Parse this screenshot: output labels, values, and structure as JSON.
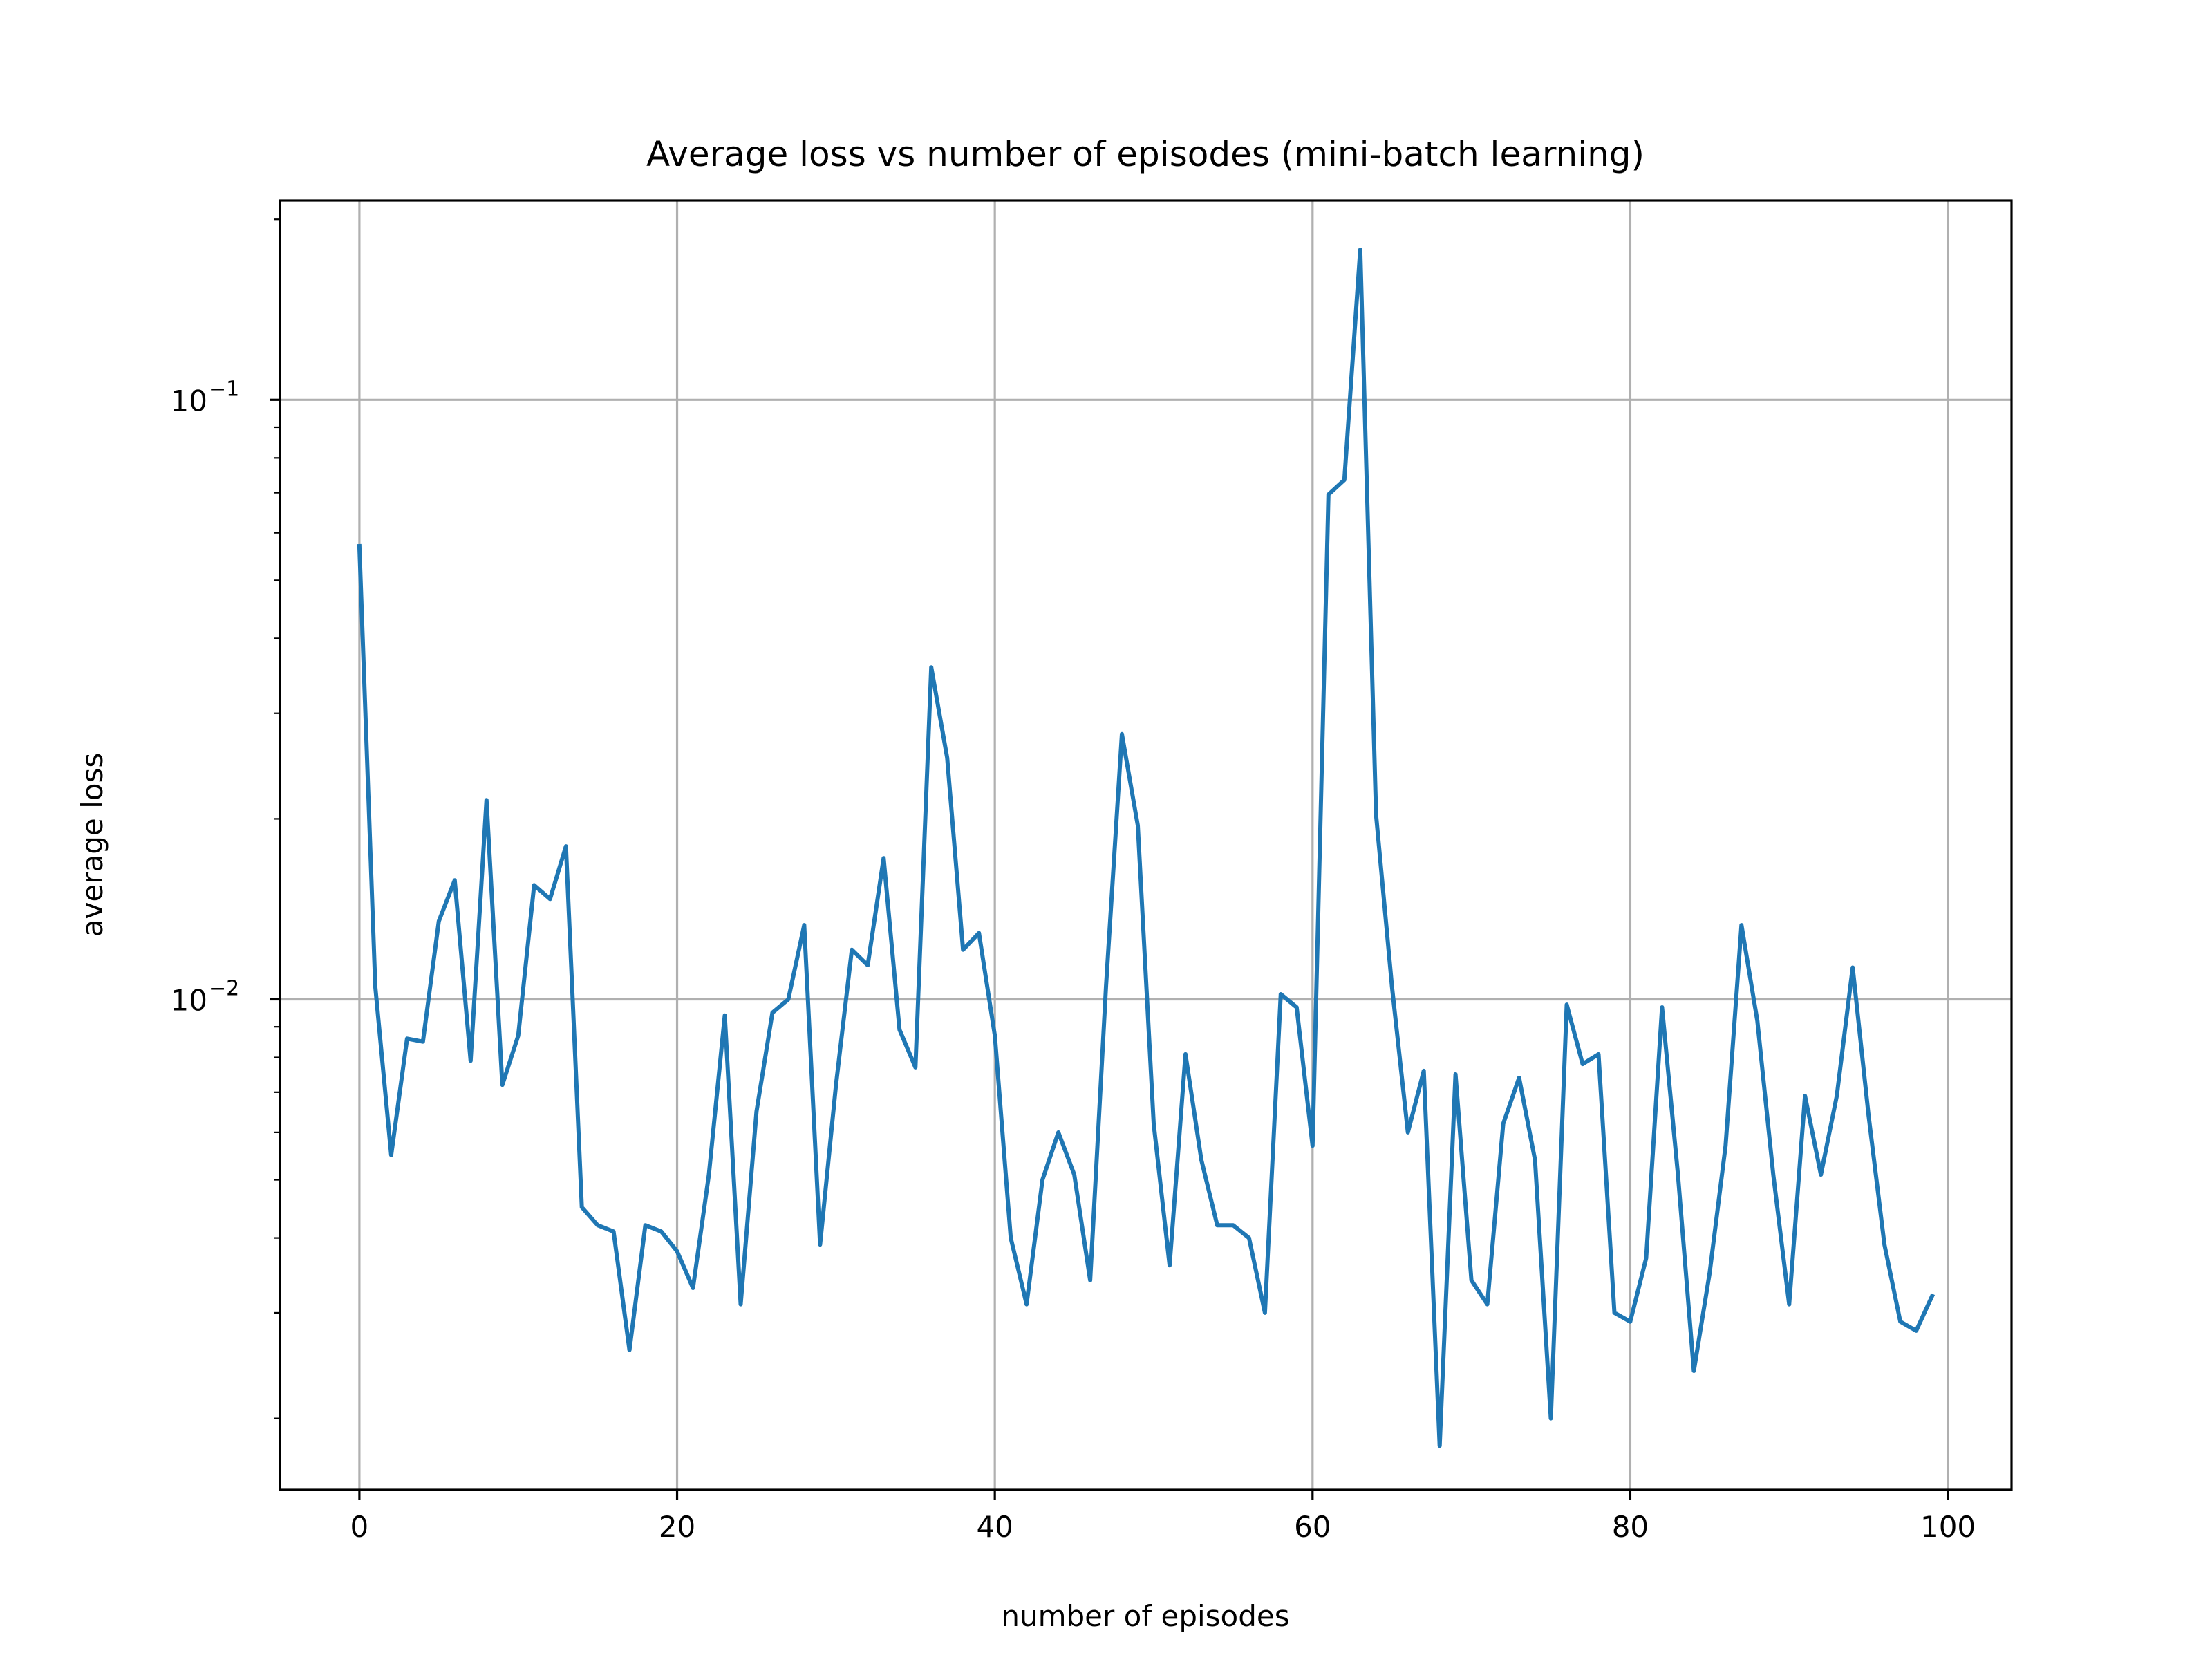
{
  "chart_data": {
    "type": "line",
    "title": "Average loss vs number of episodes (mini-batch learning)",
    "xlabel": "number of episodes",
    "ylabel": "average loss",
    "xlim": [
      -5,
      104
    ],
    "ylim": [
      0.00152,
      0.215
    ],
    "yscale": "log",
    "grid": true,
    "x_ticks": [
      {
        "value": 0,
        "label": "0"
      },
      {
        "value": 20,
        "label": "20"
      },
      {
        "value": 40,
        "label": "40"
      },
      {
        "value": 60,
        "label": "60"
      },
      {
        "value": 80,
        "label": "80"
      },
      {
        "value": 100,
        "label": "100"
      }
    ],
    "y_ticks": [
      {
        "value": 0.01,
        "base": "10",
        "exp": "−2"
      },
      {
        "value": 0.1,
        "base": "10",
        "exp": "−1"
      }
    ],
    "y_minor_ticks": [
      0.002,
      0.003,
      0.004,
      0.005,
      0.006,
      0.007,
      0.008,
      0.009,
      0.02,
      0.03,
      0.04,
      0.05,
      0.06,
      0.07,
      0.08,
      0.09,
      0.2
    ],
    "series": [
      {
        "color": "#1f77b4",
        "x": [
          0,
          1,
          2,
          3,
          4,
          5,
          6,
          7,
          8,
          9,
          10,
          11,
          12,
          13,
          14,
          15,
          16,
          17,
          18,
          19,
          20,
          21,
          22,
          23,
          24,
          25,
          26,
          27,
          28,
          29,
          30,
          31,
          32,
          33,
          34,
          35,
          36,
          37,
          38,
          39,
          40,
          41,
          42,
          43,
          44,
          45,
          46,
          47,
          48,
          49,
          50,
          51,
          52,
          53,
          54,
          55,
          56,
          57,
          58,
          59,
          60,
          61,
          62,
          63,
          64,
          65,
          66,
          67,
          68,
          69,
          70,
          71,
          72,
          73,
          74,
          75,
          76,
          77,
          78,
          79,
          80,
          81,
          82,
          83,
          84,
          85,
          86,
          87,
          88,
          89,
          90,
          91,
          92,
          93,
          94,
          95,
          96,
          97,
          98,
          99
        ],
        "values": [
          0.057,
          0.0105,
          0.0055,
          0.0086,
          0.0085,
          0.0135,
          0.0158,
          0.0079,
          0.0215,
          0.0072,
          0.0087,
          0.0155,
          0.0147,
          0.018,
          0.0045,
          0.0042,
          0.0041,
          0.0026,
          0.0042,
          0.0041,
          0.0038,
          0.0033,
          0.0051,
          0.0094,
          0.0031,
          0.0065,
          0.0095,
          0.01,
          0.0133,
          0.0039,
          0.0072,
          0.0121,
          0.0114,
          0.0172,
          0.0089,
          0.0077,
          0.0358,
          0.0253,
          0.0121,
          0.0129,
          0.0087,
          0.004,
          0.0031,
          0.005,
          0.006,
          0.0051,
          0.0034,
          0.0105,
          0.0277,
          0.0195,
          0.0062,
          0.0036,
          0.0081,
          0.0054,
          0.0042,
          0.0042,
          0.004,
          0.003,
          0.0102,
          0.0097,
          0.0057,
          0.0695,
          0.0735,
          0.178,
          0.0203,
          0.0105,
          0.006,
          0.0076,
          0.0018,
          0.0075,
          0.0034,
          0.0031,
          0.0062,
          0.0074,
          0.0054,
          0.002,
          0.0098,
          0.0078,
          0.0081,
          0.003,
          0.0029,
          0.0037,
          0.0097,
          0.0051,
          0.0024,
          0.0035,
          0.0057,
          0.0133,
          0.0092,
          0.0051,
          0.0031,
          0.0069,
          0.0051,
          0.0069,
          0.0113,
          0.0064,
          0.0039,
          0.0029,
          0.0028,
          0.0032
        ]
      }
    ]
  }
}
